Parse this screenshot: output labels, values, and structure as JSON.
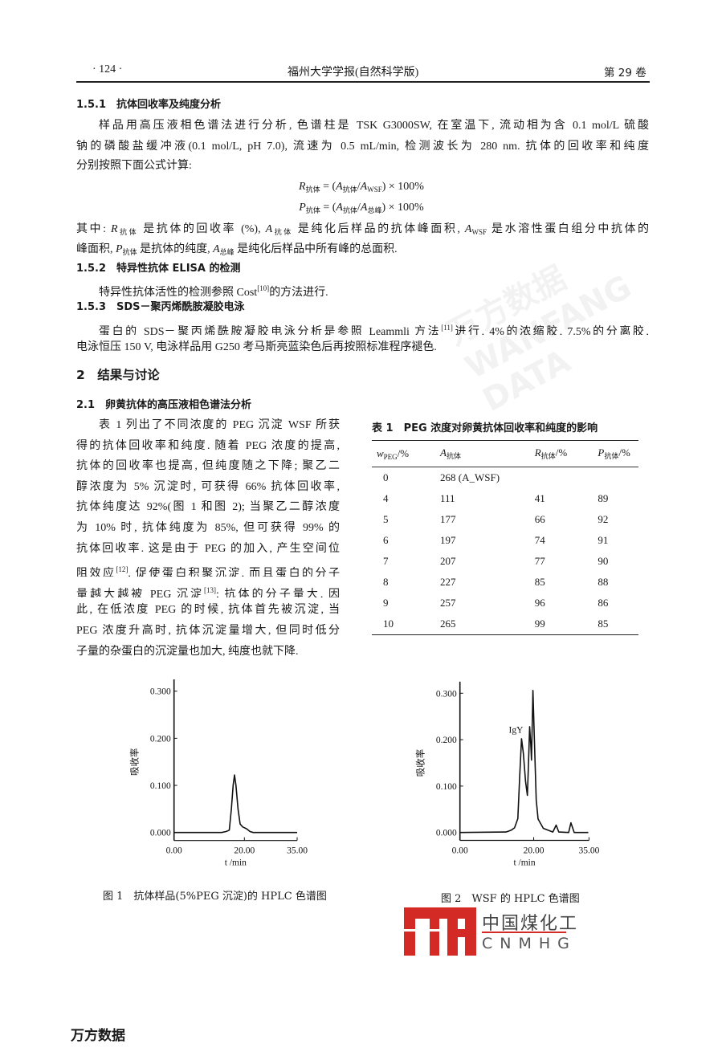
{
  "header": {
    "page_number": "· 124 ·",
    "journal": "福州大学学报(自然科学版)",
    "volume": "第 29 卷"
  },
  "body": {
    "lines": [
      [
        "1.5.1　抗体回收率及纯度分析"
      ],
      [
        "样品用高压液相色谱法进行分析, 色谱柱是 TSK G3000SW, 在室温下, 流动相为含 0.1 mol/L 硫酸"
      ],
      [
        "钠的磷酸盐缓冲液(0.1 mol/L, pH 7.0), 流速为 0.5 mL/min, 检测波长为 280 nm. 抗体的回收率和纯度"
      ],
      [
        "分别按照下面公式计算:"
      ],
      [
        {
          "i": "R",
          "sub": "抗体"
        },
        " = (",
        {
          "i": "A",
          "sub": "抗体"
        },
        "/",
        {
          "i": "A",
          "sub": "WSF"
        },
        ") × 100%"
      ],
      [
        {
          "i": "P",
          "sub": "抗体"
        },
        " = (",
        {
          "i": "A",
          "sub": "抗体"
        },
        "/",
        {
          "i": "A",
          "sub": "总峰"
        },
        ") × 100%"
      ],
      [
        "其中: ",
        {
          "i": "R",
          "sub": "抗体"
        },
        " 是抗体的回收率 (%), ",
        {
          "i": "A",
          "sub": "抗体"
        },
        " 是纯化后样品的抗体峰面积, ",
        {
          "i": "A",
          "sub": "WSF"
        },
        " 是水溶性蛋白组分中抗体的"
      ],
      [
        "峰面积, ",
        {
          "i": "P",
          "sub": "抗体"
        },
        " 是抗体的纯度, ",
        {
          "i": "A",
          "sub": "总峰"
        },
        " 是纯化后样品中所有峰的总面积."
      ],
      [
        "1.5.2　特异性抗体 ELISA 的检测"
      ],
      [
        "特异性抗体活性的检测参照 Cost",
        {
          "sup": "[10]"
        },
        "的方法进行."
      ],
      [
        "1.5.3　SDS－聚丙烯酰胺凝胶电泳"
      ],
      [
        "蛋白的 SDS－聚丙烯酰胺凝胶电泳分析是参照 Leammli 方法",
        {
          "sup": "[11]"
        },
        "进行, 4%的浓缩胶, 7.5%的分离胶,"
      ],
      [
        "电泳恒压 150 V, 电泳样品用 G250 考马斯亮蓝染色后再按照标准程序褪色."
      ],
      [
        "2　结果与讨论"
      ],
      [
        "2.1　卵黄抗体的高压液相色谱法分析"
      ]
    ],
    "column_lines": [
      [
        "表 1 列出了不同浓度的 PEG 沉淀 WSF 所获"
      ],
      [
        "得的抗体回收率和纯度. 随着 PEG 浓度的提高,"
      ],
      [
        "抗体的回收率也提高, 但纯度随之下降; 聚乙二"
      ],
      [
        "醇浓度为 5% 沉淀时, 可获得 66% 抗体回收率,"
      ],
      [
        "抗体纯度达 92%(图 1 和图 2); 当聚乙二醇浓度"
      ],
      [
        "为 10% 时, 抗体纯度为 85%, 但可获得 99% 的"
      ],
      [
        "抗体回收率. 这是由于 PEG 的加入, 产生空间位"
      ],
      [
        "阻效应",
        {
          "sup": "[12]"
        },
        ", 促使蛋白积聚沉淀, 而且蛋白的分子"
      ],
      [
        "量越大越被 PEG 沉淀",
        {
          "sup": "[13]"
        },
        "; 抗体的分子量大, 因"
      ],
      [
        "此, 在低浓度 PEG 的时候, 抗体首先被沉淀, 当"
      ],
      [
        "PEG 浓度升高时, 抗体沉淀量增大, 但同时低分"
      ],
      [
        "子量的杂蛋白的沉淀量也加大, 纯度也就下降."
      ]
    ]
  },
  "table": {
    "title": "表 1　PEG 浓度对卵黄抗体回收率和纯度的影响",
    "headers": [
      [
        {
          "i": "w",
          "sub": "PEG"
        },
        "/%"
      ],
      [
        {
          "i": "A",
          "sub": "抗体"
        }
      ],
      [
        {
          "i": "R",
          "sub": "抗体"
        },
        "/%"
      ],
      [
        {
          "i": "P",
          "sub": "抗体"
        },
        "/%"
      ]
    ],
    "rows": [
      [
        "0",
        "268 (A_WSF)",
        "",
        ""
      ],
      [
        "4",
        "111",
        "41",
        "89"
      ],
      [
        "5",
        "177",
        "66",
        "92"
      ],
      [
        "6",
        "197",
        "74",
        "91"
      ],
      [
        "7",
        "207",
        "77",
        "90"
      ],
      [
        "8",
        "227",
        "85",
        "88"
      ],
      [
        "9",
        "257",
        "96",
        "86"
      ],
      [
        "10",
        "265",
        "99",
        "85"
      ]
    ]
  },
  "chart_data": [
    {
      "type": "line",
      "caption": "图 1　抗体样品(5%PEG 沉淀)的 HPLC 色谱图",
      "xlabel": "t /min",
      "ylabel": "吸收率",
      "xlim": [
        0,
        35
      ],
      "ylim": [
        0,
        0.3
      ],
      "xticks": [
        0,
        20,
        35
      ],
      "xtick_labels": [
        "0.00",
        "20.00",
        "35.00"
      ],
      "yticks": [
        0,
        0.1,
        0.2,
        0.3
      ],
      "ytick_labels": [
        "0.000",
        "0.100",
        "0.200",
        "0.300"
      ],
      "grid": false,
      "points": [
        [
          0,
          0
        ],
        [
          13.5,
          0
        ],
        [
          14.8,
          0.002
        ],
        [
          15.7,
          0.005
        ],
        [
          16.3,
          0.05
        ],
        [
          16.8,
          0.1
        ],
        [
          17.2,
          0.122
        ],
        [
          17.6,
          0.1
        ],
        [
          18.2,
          0.05
        ],
        [
          18.8,
          0.018
        ],
        [
          19.5,
          0.012
        ],
        [
          20.6,
          0.008
        ],
        [
          21.6,
          0.002
        ],
        [
          22.5,
          0
        ],
        [
          35,
          0
        ]
      ]
    },
    {
      "type": "line",
      "caption": "图 2　WSF 的 HPLC 色谱图",
      "xlabel": "t /min",
      "ylabel": "吸收率",
      "xlim": [
        0,
        35
      ],
      "ylim": [
        0,
        0.3
      ],
      "xticks": [
        0,
        20,
        35
      ],
      "xtick_labels": [
        "0.00",
        "20.00",
        "35.00"
      ],
      "yticks": [
        0,
        0.1,
        0.2,
        0.3
      ],
      "ytick_labels": [
        "0.000",
        "0.100",
        "0.200",
        "0.300"
      ],
      "grid": false,
      "annotations": [
        {
          "text": "IgY",
          "x": 15.2,
          "y": 0.215
        }
      ],
      "points": [
        [
          0,
          0
        ],
        [
          12.5,
          0.001
        ],
        [
          13.9,
          0.005
        ],
        [
          14.8,
          0.01
        ],
        [
          15.7,
          0.03
        ],
        [
          16.2,
          0.12
        ],
        [
          16.7,
          0.202
        ],
        [
          17.2,
          0.17
        ],
        [
          17.8,
          0.11
        ],
        [
          18.3,
          0.08
        ],
        [
          18.6,
          0.15
        ],
        [
          18.9,
          0.228
        ],
        [
          19.2,
          0.19
        ],
        [
          19.4,
          0.156
        ],
        [
          19.8,
          0.306
        ],
        [
          20.2,
          0.2
        ],
        [
          20.7,
          0.07
        ],
        [
          21.2,
          0.029
        ],
        [
          22.6,
          0.009
        ],
        [
          25.2,
          0.001
        ],
        [
          26.1,
          0.016
        ],
        [
          26.8,
          0.001
        ],
        [
          29.5,
          0
        ],
        [
          30.1,
          0.021
        ],
        [
          31,
          0
        ],
        [
          34.8,
          0
        ]
      ]
    }
  ],
  "logo": {
    "cn": "中国煤化工",
    "en": "CNMHG",
    "color": "#d42a26"
  },
  "watermark": "万方数据 WANFANG DATA",
  "footer": "万方数据"
}
